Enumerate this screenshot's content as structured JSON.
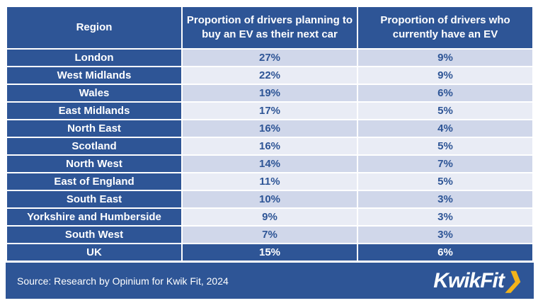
{
  "chart_data": {
    "type": "table",
    "columns": [
      "Region",
      "Proportion of drivers planning to buy an EV as their next car",
      "Proportion of drivers who currently have an EV"
    ],
    "rows": [
      [
        "London",
        "27%",
        "9%"
      ],
      [
        "West Midlands",
        "22%",
        "9%"
      ],
      [
        "Wales",
        "19%",
        "6%"
      ],
      [
        "East Midlands",
        "17%",
        "5%"
      ],
      [
        "North East",
        "16%",
        "4%"
      ],
      [
        "Scotland",
        "16%",
        "5%"
      ],
      [
        "North West",
        "14%",
        "7%"
      ],
      [
        "East of England",
        "11%",
        "5%"
      ],
      [
        "South East",
        "10%",
        "3%"
      ],
      [
        "Yorkshire and Humberside",
        "9%",
        "3%"
      ],
      [
        "South West",
        "7%",
        "3%"
      ],
      [
        "UK",
        "15%",
        "6%"
      ]
    ]
  },
  "footer": {
    "source": "Source: Research by Opinium for Kwik Fit, 2024",
    "logo_text": "KwikFit",
    "logo_chevron": "❯"
  },
  "colors": {
    "header": "#2e5596",
    "row_odd": "#d0d7ea",
    "row_even": "#e9ecf5",
    "logo_accent": "#f2b41b"
  }
}
